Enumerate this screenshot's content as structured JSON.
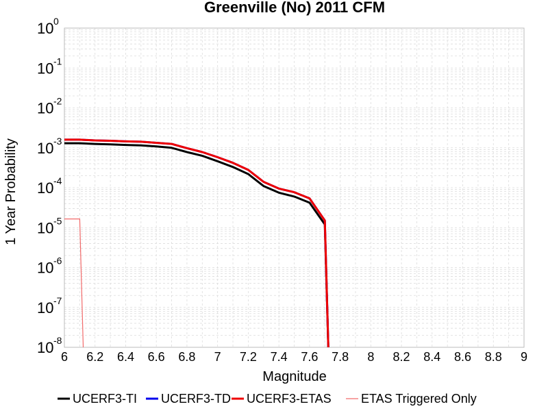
{
  "chart_data": {
    "type": "line",
    "title": "Greenville (No) 2011 CFM",
    "xlabel": "Magnitude",
    "ylabel": "1 Year Probability",
    "xlim": [
      6,
      9
    ],
    "ylim": [
      1e-08,
      1
    ],
    "yscale": "log",
    "grid": true,
    "legend_position": "bottom",
    "x_ticks": [
      "6",
      "6.2",
      "6.4",
      "6.6",
      "6.8",
      "7",
      "7.2",
      "7.4",
      "7.6",
      "7.8",
      "8",
      "8.2",
      "8.4",
      "8.6",
      "8.8",
      "9"
    ],
    "y_ticks": [
      {
        "base": "10",
        "exp": "0"
      },
      {
        "base": "10",
        "exp": "-1"
      },
      {
        "base": "10",
        "exp": "-2"
      },
      {
        "base": "10",
        "exp": "-3"
      },
      {
        "base": "10",
        "exp": "-4"
      },
      {
        "base": "10",
        "exp": "-5"
      },
      {
        "base": "10",
        "exp": "-6"
      },
      {
        "base": "10",
        "exp": "-7"
      },
      {
        "base": "10",
        "exp": "-8"
      }
    ],
    "series": [
      {
        "name": "UCERF3-TI",
        "color": "#000000",
        "x": [
          6.0,
          6.1,
          6.2,
          6.3,
          6.4,
          6.5,
          6.6,
          6.7,
          6.8,
          6.9,
          7.0,
          7.1,
          7.2,
          7.3,
          7.4,
          7.5,
          7.6,
          7.7,
          7.73
        ],
        "y": [
          0.0013,
          0.0013,
          0.00125,
          0.00122,
          0.00118,
          0.00115,
          0.00108,
          0.001,
          0.00078,
          0.00063,
          0.00046,
          0.00033,
          0.00022,
          0.00011,
          7.5e-05,
          6e-05,
          4.2e-05,
          1.2e-05,
          1e-09
        ]
      },
      {
        "name": "UCERF3-TD",
        "color": "#0000ee",
        "x": [
          6.0,
          6.1,
          6.2,
          6.3,
          6.4,
          6.5,
          6.6,
          6.7,
          6.8,
          6.9,
          7.0,
          7.1,
          7.2,
          7.3,
          7.4,
          7.5,
          7.6,
          7.7,
          7.73
        ],
        "y": [
          0.0016,
          0.0016,
          0.00153,
          0.0015,
          0.00145,
          0.00142,
          0.00133,
          0.00125,
          0.00098,
          0.00078,
          0.00058,
          0.00042,
          0.00028,
          0.00014,
          9.5e-05,
          7.7e-05,
          5.4e-05,
          1.5e-05,
          1e-09
        ]
      },
      {
        "name": "UCERF3-ETAS",
        "color": "#ee0000",
        "x": [
          6.0,
          6.1,
          6.2,
          6.3,
          6.4,
          6.5,
          6.6,
          6.7,
          6.8,
          6.9,
          7.0,
          7.1,
          7.2,
          7.3,
          7.4,
          7.5,
          7.6,
          7.7,
          7.73
        ],
        "y": [
          0.0016,
          0.0016,
          0.00153,
          0.0015,
          0.00145,
          0.00142,
          0.00133,
          0.00125,
          0.00098,
          0.00078,
          0.00058,
          0.00042,
          0.00028,
          0.00014,
          9.5e-05,
          7.7e-05,
          5.4e-05,
          1.5e-05,
          1e-09
        ]
      },
      {
        "name": "ETAS Triggered Only",
        "color": "#f26a6a",
        "x": [
          6.0,
          6.1,
          6.13
        ],
        "y": [
          1.65e-05,
          1.65e-05,
          1e-09
        ]
      }
    ]
  }
}
